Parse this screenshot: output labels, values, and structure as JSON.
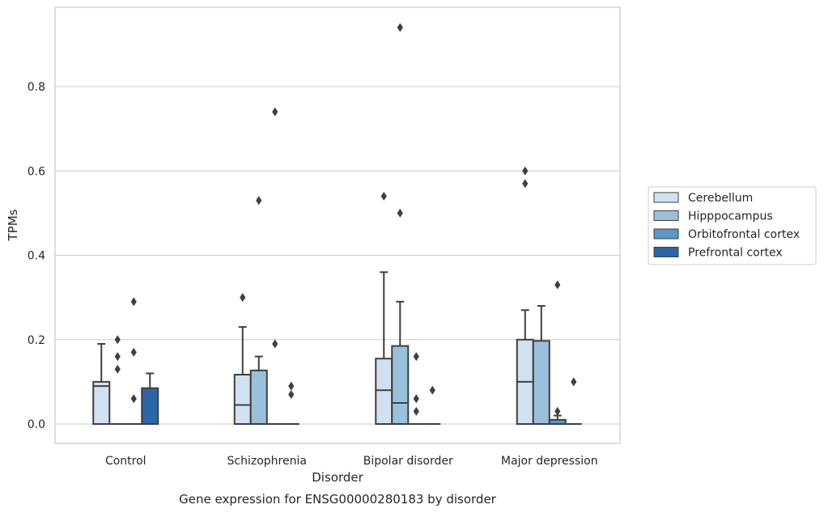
{
  "chart_data": {
    "type": "box",
    "caption": "Gene expression for ENSG00000280183 by disorder",
    "xlabel": "Disorder",
    "ylabel": "TPMs",
    "ylim": [
      -0.045,
      0.985
    ],
    "yticks": [
      0.0,
      0.2,
      0.4,
      0.6,
      0.8
    ],
    "ytick_labels": [
      "0.0",
      "0.2",
      "0.4",
      "0.6",
      "0.8"
    ],
    "grid": "horizontal",
    "legend_position": "right",
    "categories": [
      "Control",
      "Schizophrenia",
      "Bipolar disorder",
      "Major depression"
    ],
    "series": [
      {
        "name": "Cerebellum",
        "color": "#d0e1f2",
        "boxes": [
          {
            "q1": 0.0,
            "median": 0.09,
            "q3": 0.1,
            "whisker_low": 0.0,
            "whisker_high": 0.19,
            "outliers": []
          },
          {
            "q1": 0.0,
            "median": 0.045,
            "q3": 0.117,
            "whisker_low": 0.0,
            "whisker_high": 0.23,
            "outliers": [
              0.3
            ]
          },
          {
            "q1": 0.0,
            "median": 0.08,
            "q3": 0.155,
            "whisker_low": 0.0,
            "whisker_high": 0.36,
            "outliers": [
              0.54
            ]
          },
          {
            "q1": 0.0,
            "median": 0.1,
            "q3": 0.2,
            "whisker_low": 0.0,
            "whisker_high": 0.27,
            "outliers": [
              0.57,
              0.6
            ]
          }
        ]
      },
      {
        "name": "Hipppocampus",
        "color": "#9ac1db",
        "boxes": [
          {
            "q1": 0.0,
            "median": 0.0,
            "q3": 0.0,
            "whisker_low": 0.0,
            "whisker_high": 0.0,
            "outliers": [
              0.13,
              0.16,
              0.2
            ]
          },
          {
            "q1": 0.0,
            "median": 0.0,
            "q3": 0.127,
            "whisker_low": 0.0,
            "whisker_high": 0.16,
            "outliers": [
              0.53
            ]
          },
          {
            "q1": 0.0,
            "median": 0.05,
            "q3": 0.185,
            "whisker_low": 0.0,
            "whisker_high": 0.29,
            "outliers": [
              0.5,
              0.94
            ]
          },
          {
            "q1": 0.0,
            "median": 0.0,
            "q3": 0.197,
            "whisker_low": 0.0,
            "whisker_high": 0.28,
            "outliers": []
          }
        ]
      },
      {
        "name": "Orbitofrontal cortex",
        "color": "#5997c6",
        "boxes": [
          {
            "q1": 0.0,
            "median": 0.0,
            "q3": 0.0,
            "whisker_low": 0.0,
            "whisker_high": 0.0,
            "outliers": [
              0.06,
              0.17,
              0.29
            ]
          },
          {
            "q1": 0.0,
            "median": 0.0,
            "q3": 0.0,
            "whisker_low": 0.0,
            "whisker_high": 0.0,
            "outliers": [
              0.19,
              0.74
            ]
          },
          {
            "q1": 0.0,
            "median": 0.0,
            "q3": 0.0,
            "whisker_low": 0.0,
            "whisker_high": 0.0,
            "outliers": [
              0.03,
              0.06,
              0.16
            ]
          },
          {
            "q1": 0.0,
            "median": 0.0,
            "q3": 0.01,
            "whisker_low": 0.0,
            "whisker_high": 0.02,
            "outliers": [
              0.03,
              0.33
            ]
          }
        ]
      },
      {
        "name": "Prefrontal cortex",
        "color": "#2a66a8",
        "boxes": [
          {
            "q1": 0.0,
            "median": 0.0,
            "q3": 0.085,
            "whisker_low": 0.0,
            "whisker_high": 0.12,
            "outliers": []
          },
          {
            "q1": 0.0,
            "median": 0.0,
            "q3": 0.0,
            "whisker_low": 0.0,
            "whisker_high": 0.0,
            "outliers": [
              0.07,
              0.09
            ]
          },
          {
            "q1": 0.0,
            "median": 0.0,
            "q3": 0.0,
            "whisker_low": 0.0,
            "whisker_high": 0.0,
            "outliers": [
              0.08
            ]
          },
          {
            "q1": 0.0,
            "median": 0.0,
            "q3": 0.0,
            "whisker_low": 0.0,
            "whisker_high": 0.0,
            "outliers": [
              0.1
            ]
          }
        ]
      }
    ]
  }
}
